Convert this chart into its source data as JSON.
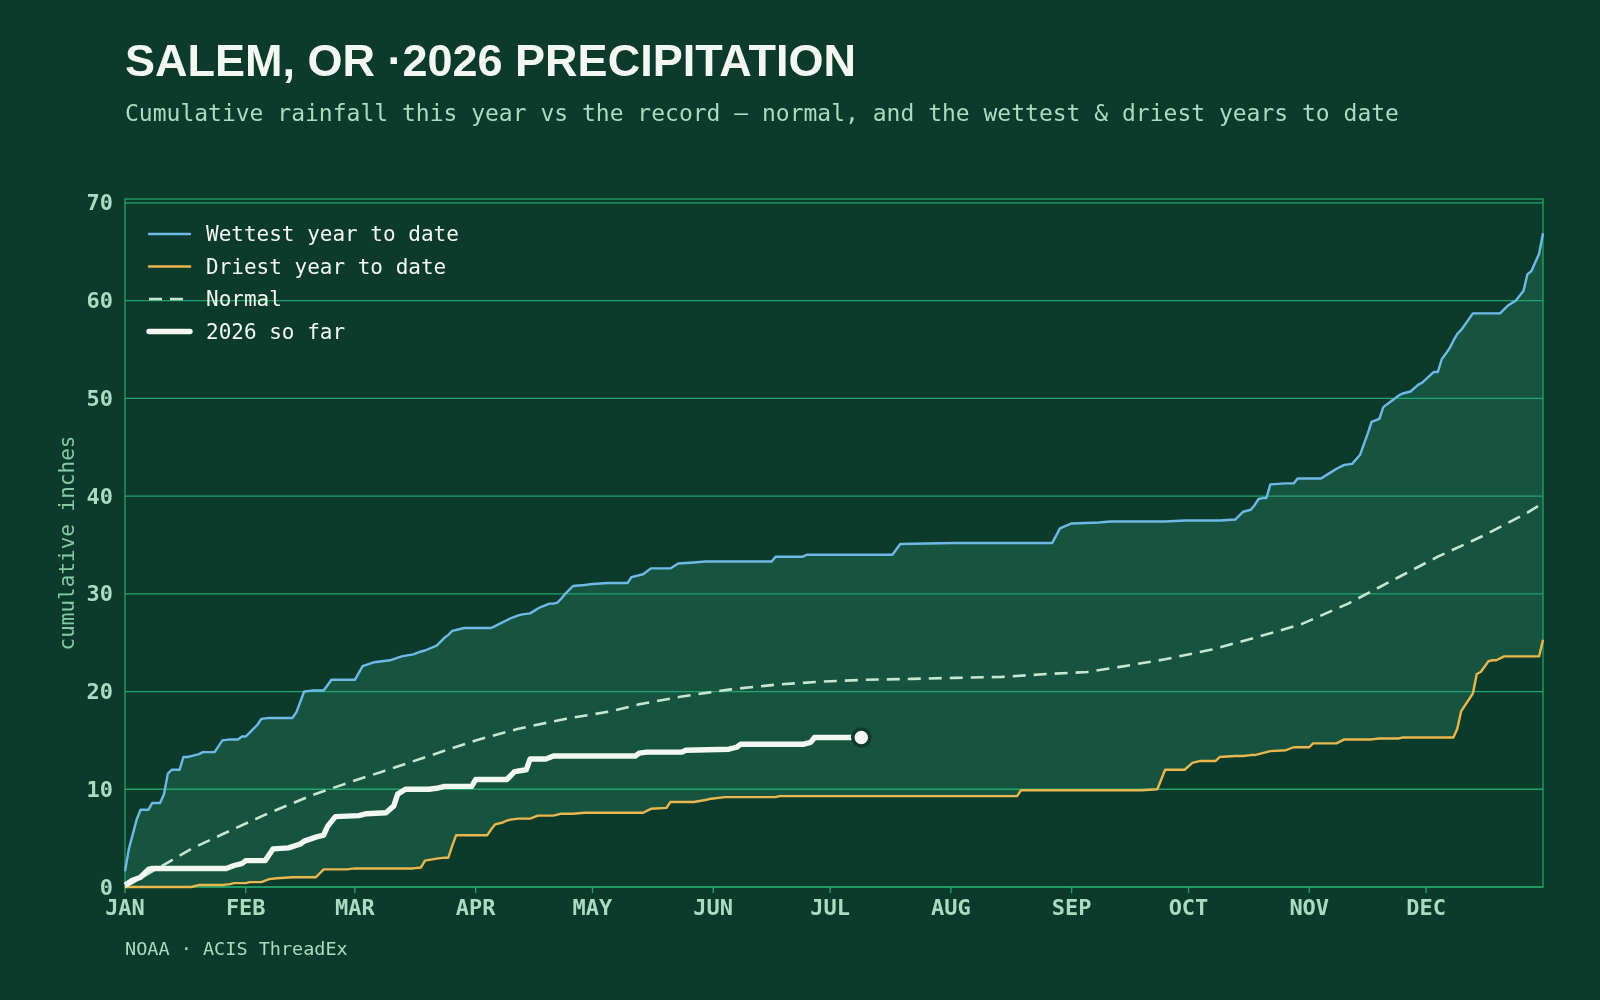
{
  "chart_data": {
    "type": "line",
    "title": "SALEM, OR ·2026 PRECIPITATION",
    "subtitle": "Cumulative rainfall this year vs the record — normal, and the wettest & driest years to date",
    "ylabel": "cumulative inches",
    "annotations": [
      "NOAA · ACIS ThreadEx"
    ],
    "x": [
      "--01-01",
      "--01-02",
      "--01-04",
      "--01-05",
      "--01-07",
      "--01-08",
      "--01-10",
      "--01-11",
      "--01-12",
      "--01-13",
      "--01-15",
      "--01-16",
      "--01-17",
      "--01-18",
      "--01-19",
      "--01-20",
      "--01-21",
      "--01-24",
      "--01-26",
      "--01-28",
      "--01-29",
      "--01-30",
      "--01-31",
      "--02-01",
      "--02-02",
      "--02-03",
      "--02-04",
      "--02-05",
      "--02-07",
      "--02-09",
      "--02-13",
      "--02-14",
      "--02-16",
      "--02-18",
      "--02-19",
      "--02-21",
      "--02-23",
      "--02-27",
      "--03-01",
      "--03-03",
      "--03-06",
      "--03-10",
      "--03-13",
      "--03-16",
      "--03-18",
      "--03-19",
      "--03-22",
      "--03-24",
      "--03-25",
      "--03-26",
      "--03-27",
      "--03-29",
      "--04-04",
      "--04-05",
      "--04-06",
      "--04-08",
      "--04-09",
      "--04-10",
      "--04-12",
      "--04-13",
      "--04-15",
      "--04-17",
      "--04-18",
      "--04-20",
      "--04-21",
      "--04-22",
      "--04-23",
      "--04-24",
      "--04-26",
      "--04-29",
      "--05-01",
      "--05-05",
      "--05-10",
      "--05-11",
      "--05-14",
      "--05-16",
      "--05-20",
      "--05-21",
      "--05-23",
      "--05-27",
      "--05-30",
      "--05-31",
      "--06-04",
      "--06-16",
      "--06-17",
      "--06-18",
      "--06-24",
      "--06-25",
      "--07-17",
      "--07-19",
      "--08-02",
      "--08-18",
      "--08-19",
      "--08-27",
      "--08-29",
      "--09-01",
      "--09-08",
      "--09-11",
      "--09-19",
      "--09-23",
      "--09-25",
      "--09-30",
      "--10-02",
      "--10-04",
      "--10-08",
      "--10-09",
      "--10-13",
      "--10-15",
      "--10-17",
      "--10-18",
      "--10-19",
      "--10-20",
      "--10-21",
      "--10-22",
      "--10-26",
      "--10-28",
      "--10-29",
      "--11-01",
      "--11-02",
      "--11-04",
      "--11-06",
      "--11-08",
      "--11-10",
      "--11-12",
      "--11-14",
      "--11-15",
      "--11-16",
      "--11-17",
      "--11-19",
      "--11-20",
      "--11-22",
      "--11-24",
      "--11-25",
      "--11-27",
      "--11-29",
      "--11-30",
      "--12-03",
      "--12-04",
      "--12-05",
      "--12-07",
      "--12-08",
      "--12-09",
      "--12-10",
      "--12-13",
      "--12-14",
      "--12-15",
      "--12-17",
      "--12-18",
      "--12-19",
      "--12-20",
      "--12-21",
      "--12-22",
      "--12-24",
      "--12-26",
      "--12-27",
      "--12-28",
      "--12-30",
      "--12-31"
    ],
    "xlim": [
      "--01-01",
      "--12-31"
    ],
    "xticks": [
      {
        "value": "--01-01",
        "label": "JAN"
      },
      {
        "value": "--02-01",
        "label": "FEB"
      },
      {
        "value": "--03-01",
        "label": "MAR"
      },
      {
        "value": "--04-01",
        "label": "APR"
      },
      {
        "value": "--05-01",
        "label": "MAY"
      },
      {
        "value": "--06-01",
        "label": "JUN"
      },
      {
        "value": "--07-01",
        "label": "JUL"
      },
      {
        "value": "--08-01",
        "label": "AUG"
      },
      {
        "value": "--09-01",
        "label": "SEP"
      },
      {
        "value": "--10-01",
        "label": "OCT"
      },
      {
        "value": "--11-01",
        "label": "NOV"
      },
      {
        "value": "--12-01",
        "label": "DEC"
      }
    ],
    "ylim": [
      0,
      70.4
    ],
    "yticks": [
      0,
      10,
      20,
      30,
      40,
      50,
      60,
      70
    ],
    "grid": "y",
    "legend": "top left",
    "series": [
      {
        "name": "Wettest year to date",
        "color": "#6fb9e8",
        "values": [
          1.6,
          3.9,
          6.9,
          7.9,
          7.9,
          8.6,
          8.6,
          9.5,
          11.6,
          12.0,
          12.0,
          13.3,
          13.3,
          13.4,
          13.5,
          13.6,
          13.8,
          13.8,
          15.0,
          15.1,
          15.1,
          15.1,
          15.4,
          15.4,
          15.8,
          16.2,
          16.6,
          17.2,
          17.3,
          17.3,
          17.3,
          17.9,
          20.0,
          20.1,
          20.1,
          20.1,
          21.2,
          21.2,
          21.2,
          22.6,
          23.0,
          23.2,
          23.6,
          23.8,
          24.1,
          24.2,
          24.7,
          25.5,
          25.8,
          26.2,
          26.3,
          26.5,
          26.5,
          26.5,
          26.7,
          27.1,
          27.3,
          27.5,
          27.8,
          27.9,
          28.0,
          28.5,
          28.7,
          29.0,
          29.0,
          29.1,
          29.5,
          30.0,
          30.8,
          30.9,
          31.0,
          31.1,
          31.1,
          31.7,
          32.0,
          32.6,
          32.6,
          32.6,
          33.1,
          33.2,
          33.3,
          33.3,
          33.3,
          33.3,
          33.8,
          33.8,
          33.8,
          34.0,
          34.0,
          35.1,
          35.2,
          35.2,
          35.2,
          35.2,
          36.7,
          37.2,
          37.3,
          37.4,
          37.4,
          37.4,
          37.4,
          37.5,
          37.5,
          37.5,
          37.5,
          37.5,
          37.6,
          38.4,
          38.6,
          39.1,
          39.7,
          39.8,
          39.8,
          41.2,
          41.3,
          41.3,
          41.8,
          41.8,
          41.8,
          41.8,
          42.3,
          42.8,
          43.2,
          43.3,
          44.2,
          45.3,
          46.4,
          47.6,
          47.9,
          49.1,
          49.7,
          50.3,
          50.5,
          50.7,
          51.4,
          51.6,
          52.7,
          52.7,
          54.0,
          55.1,
          55.9,
          56.6,
          57.0,
          58.7,
          58.7,
          58.7,
          58.7,
          58.7,
          58.7,
          58.7,
          59.1,
          59.5,
          60.0,
          61.0,
          62.7,
          63.0,
          64.8,
          66.9
        ],
        "lower": [
          0,
          0,
          0,
          0,
          0,
          0,
          0,
          0,
          0,
          0,
          0,
          0,
          0,
          0,
          0.1,
          0.2,
          0.2,
          0.2,
          0.2,
          0.3,
          0.4,
          0.4,
          0.4,
          0.4,
          0.5,
          0.5,
          0.5,
          0.5,
          0.8,
          0.9,
          1.0,
          1.0,
          1.0,
          1.0,
          1.0,
          1.8,
          1.8,
          1.8,
          1.9,
          1.9,
          1.9,
          1.9,
          1.9,
          1.9,
          2.0,
          2.7,
          2.9,
          3.0,
          3.0,
          4.2,
          5.3,
          5.3,
          5.3,
          5.9,
          6.4,
          6.6,
          6.8,
          6.9,
          7.0,
          7.0,
          7.0,
          7.3,
          7.3,
          7.3,
          7.3,
          7.4,
          7.5,
          7.5,
          7.5,
          7.6,
          7.6,
          7.6,
          7.6,
          7.6,
          7.6,
          8.0,
          8.1,
          8.7,
          8.7,
          8.7,
          8.9,
          9.0,
          9.2,
          9.2,
          9.2,
          9.3,
          9.3,
          9.3,
          9.3,
          9.3,
          9.3,
          9.3,
          9.9,
          9.9,
          9.9,
          9.9,
          9.9,
          9.9,
          9.9,
          10.0,
          12.0,
          12.0,
          12.7,
          12.9,
          12.9,
          13.3,
          13.4,
          13.4,
          13.5,
          13.5,
          13.6,
          13.7,
          13.8,
          13.9,
          14.0,
          14.3,
          14.3,
          14.3,
          14.7,
          14.7,
          14.7,
          14.7,
          15.1,
          15.1,
          15.1,
          15.1,
          15.1,
          15.1,
          15.2,
          15.2,
          15.2,
          15.2,
          15.3,
          15.3,
          15.3,
          15.3,
          15.3,
          15.3,
          15.3,
          15.3,
          15.3,
          16.2,
          18.0,
          19.8,
          21.8,
          22.0,
          23.1,
          23.2,
          23.2,
          23.4,
          23.6,
          23.6,
          23.6,
          23.6,
          23.6,
          23.6,
          23.6,
          25.3
        ],
        "upper": [
          1.6,
          3.9,
          6.9,
          7.9,
          7.9,
          8.6,
          8.6,
          9.5,
          11.6,
          12.0,
          12.0,
          13.3,
          13.3,
          13.4,
          13.5,
          13.6,
          13.8,
          13.8,
          15.0,
          15.1,
          15.1,
          15.1,
          15.4,
          15.4,
          15.8,
          16.2,
          16.6,
          17.2,
          17.3,
          17.3,
          17.3,
          17.9,
          20.0,
          20.1,
          20.1,
          20.1,
          21.2,
          21.2,
          21.2,
          22.6,
          23.0,
          23.2,
          23.6,
          23.8,
          24.1,
          24.2,
          24.7,
          25.5,
          25.8,
          26.2,
          26.3,
          26.5,
          26.5,
          26.5,
          26.7,
          27.1,
          27.3,
          27.5,
          27.8,
          27.9,
          28.0,
          28.5,
          28.7,
          29.0,
          29.0,
          29.1,
          29.5,
          30.0,
          30.8,
          30.9,
          31.0,
          31.1,
          31.1,
          31.7,
          32.0,
          32.6,
          32.6,
          32.6,
          33.1,
          33.2,
          33.3,
          33.3,
          33.3,
          33.3,
          33.8,
          33.8,
          33.8,
          34.0,
          34.0,
          35.1,
          35.2,
          35.2,
          35.2,
          35.2,
          36.7,
          37.2,
          37.3,
          37.4,
          37.4,
          37.4,
          37.4,
          37.5,
          37.5,
          37.5,
          37.5,
          37.5,
          37.6,
          38.4,
          38.6,
          39.1,
          39.7,
          39.8,
          39.8,
          41.2,
          41.3,
          41.3,
          41.8,
          41.8,
          41.8,
          41.8,
          42.3,
          42.8,
          43.2,
          43.3,
          44.2,
          45.3,
          46.4,
          47.6,
          47.9,
          49.1,
          49.7,
          50.3,
          50.5,
          50.7,
          51.4,
          51.6,
          52.7,
          52.7,
          54.0,
          55.1,
          55.9,
          56.6,
          57.0,
          58.7,
          58.7,
          58.7,
          58.7,
          58.7,
          58.7,
          58.7,
          59.1,
          59.5,
          60.0,
          61.0,
          62.7,
          63.0,
          64.8,
          66.9
        ]
      },
      {
        "name": "Driest year to date",
        "color": "#e9b74d",
        "values": [
          0,
          0,
          0,
          0,
          0,
          0,
          0,
          0,
          0,
          0,
          0,
          0,
          0,
          0,
          0.1,
          0.2,
          0.2,
          0.2,
          0.2,
          0.3,
          0.4,
          0.4,
          0.4,
          0.4,
          0.5,
          0.5,
          0.5,
          0.5,
          0.8,
          0.9,
          1.0,
          1.0,
          1.0,
          1.0,
          1.0,
          1.8,
          1.8,
          1.8,
          1.9,
          1.9,
          1.9,
          1.9,
          1.9,
          1.9,
          2.0,
          2.7,
          2.9,
          3.0,
          3.0,
          4.2,
          5.3,
          5.3,
          5.3,
          5.9,
          6.4,
          6.6,
          6.8,
          6.9,
          7.0,
          7.0,
          7.0,
          7.3,
          7.3,
          7.3,
          7.3,
          7.4,
          7.5,
          7.5,
          7.5,
          7.6,
          7.6,
          7.6,
          7.6,
          7.6,
          7.6,
          8.0,
          8.1,
          8.7,
          8.7,
          8.7,
          8.9,
          9.0,
          9.2,
          9.2,
          9.2,
          9.3,
          9.3,
          9.3,
          9.3,
          9.3,
          9.3,
          9.3,
          9.9,
          9.9,
          9.9,
          9.9,
          9.9,
          9.9,
          9.9,
          10.0,
          12.0,
          12.0,
          12.7,
          12.9,
          12.9,
          13.3,
          13.4,
          13.4,
          13.5,
          13.5,
          13.6,
          13.7,
          13.8,
          13.9,
          14.0,
          14.3,
          14.3,
          14.3,
          14.7,
          14.7,
          14.7,
          14.7,
          15.1,
          15.1,
          15.1,
          15.1,
          15.1,
          15.1,
          15.2,
          15.2,
          15.2,
          15.2,
          15.3,
          15.3,
          15.3,
          15.3,
          15.3,
          15.3,
          15.3,
          15.3,
          15.3,
          16.2,
          18.0,
          19.8,
          21.8,
          22.0,
          23.1,
          23.2,
          23.2,
          23.4,
          23.6,
          23.6,
          23.6,
          23.6,
          23.6,
          23.6,
          23.6,
          25.3
        ]
      },
      {
        "name": "Normal",
        "color": "#c6e6d0",
        "line_style": "dashed",
        "x": [
          "--01-01",
          "--01-12",
          "--01-18",
          "--01-26",
          "--02-06",
          "--02-18",
          "--03-01",
          "--03-08",
          "--03-20",
          "--04-01",
          "--04-12",
          "--04-24",
          "--05-06",
          "--05-13",
          "--05-24",
          "--06-05",
          "--06-17",
          "--06-28",
          "--07-10",
          "--07-22",
          "--08-02",
          "--08-14",
          "--08-26",
          "--09-05",
          "--09-13",
          "--09-25",
          "--10-07",
          "--10-18",
          "--10-30",
          "--11-11",
          "--11-22",
          "--12-04",
          "--12-16",
          "--12-27",
          "--12-31"
        ],
        "values": [
          0,
          2.5,
          3.9,
          5.4,
          7.4,
          9.4,
          10.9,
          11.8,
          13.4,
          15.0,
          16.2,
          17.2,
          18.0,
          18.7,
          19.5,
          20.2,
          20.7,
          21.0,
          21.2,
          21.3,
          21.4,
          21.5,
          21.8,
          22.0,
          22.5,
          23.3,
          24.3,
          25.5,
          26.9,
          29.0,
          31.3,
          33.8,
          36.0,
          38.3,
          39.3
        ]
      },
      {
        "name": "2026 so far",
        "color": "#f3f7f1",
        "x": [
          "--01-01",
          "--01-03",
          "--01-05",
          "--01-07",
          "--01-08",
          "--01-27",
          "--01-29",
          "--01-31",
          "--02-01",
          "--02-06",
          "--02-08",
          "--02-12",
          "--02-15",
          "--02-16",
          "--02-19",
          "--02-21",
          "--02-22",
          "--02-24",
          "--03-02",
          "--03-04",
          "--03-09",
          "--03-11",
          "--03-12",
          "--03-14",
          "--03-20",
          "--03-22",
          "--03-24",
          "--03-31",
          "--04-01",
          "--04-09",
          "--04-11",
          "--04-14",
          "--04-15",
          "--04-19",
          "--04-21",
          "--05-12",
          "--05-13",
          "--05-15",
          "--05-24",
          "--05-25",
          "--06-05",
          "--06-07",
          "--06-08",
          "--06-24",
          "--06-26",
          "--06-27",
          "--07-09"
        ],
        "values": [
          0.2,
          0.7,
          1.0,
          1.8,
          1.9,
          1.9,
          2.2,
          2.4,
          2.7,
          2.7,
          3.9,
          4.0,
          4.4,
          4.7,
          5.1,
          5.3,
          6.2,
          7.2,
          7.3,
          7.5,
          7.6,
          8.3,
          9.5,
          10.0,
          10.0,
          10.1,
          10.3,
          10.3,
          11.0,
          11.0,
          11.8,
          12.0,
          13.1,
          13.1,
          13.4,
          13.4,
          13.7,
          13.8,
          13.8,
          14.0,
          14.1,
          14.3,
          14.6,
          14.6,
          14.8,
          15.3,
          15.3
        ]
      },
      {
        "type": "scatter",
        "color": "#f3f7f1",
        "marker": "circle",
        "x": [
          "--07-09"
        ],
        "values": [
          15.3
        ]
      }
    ]
  }
}
